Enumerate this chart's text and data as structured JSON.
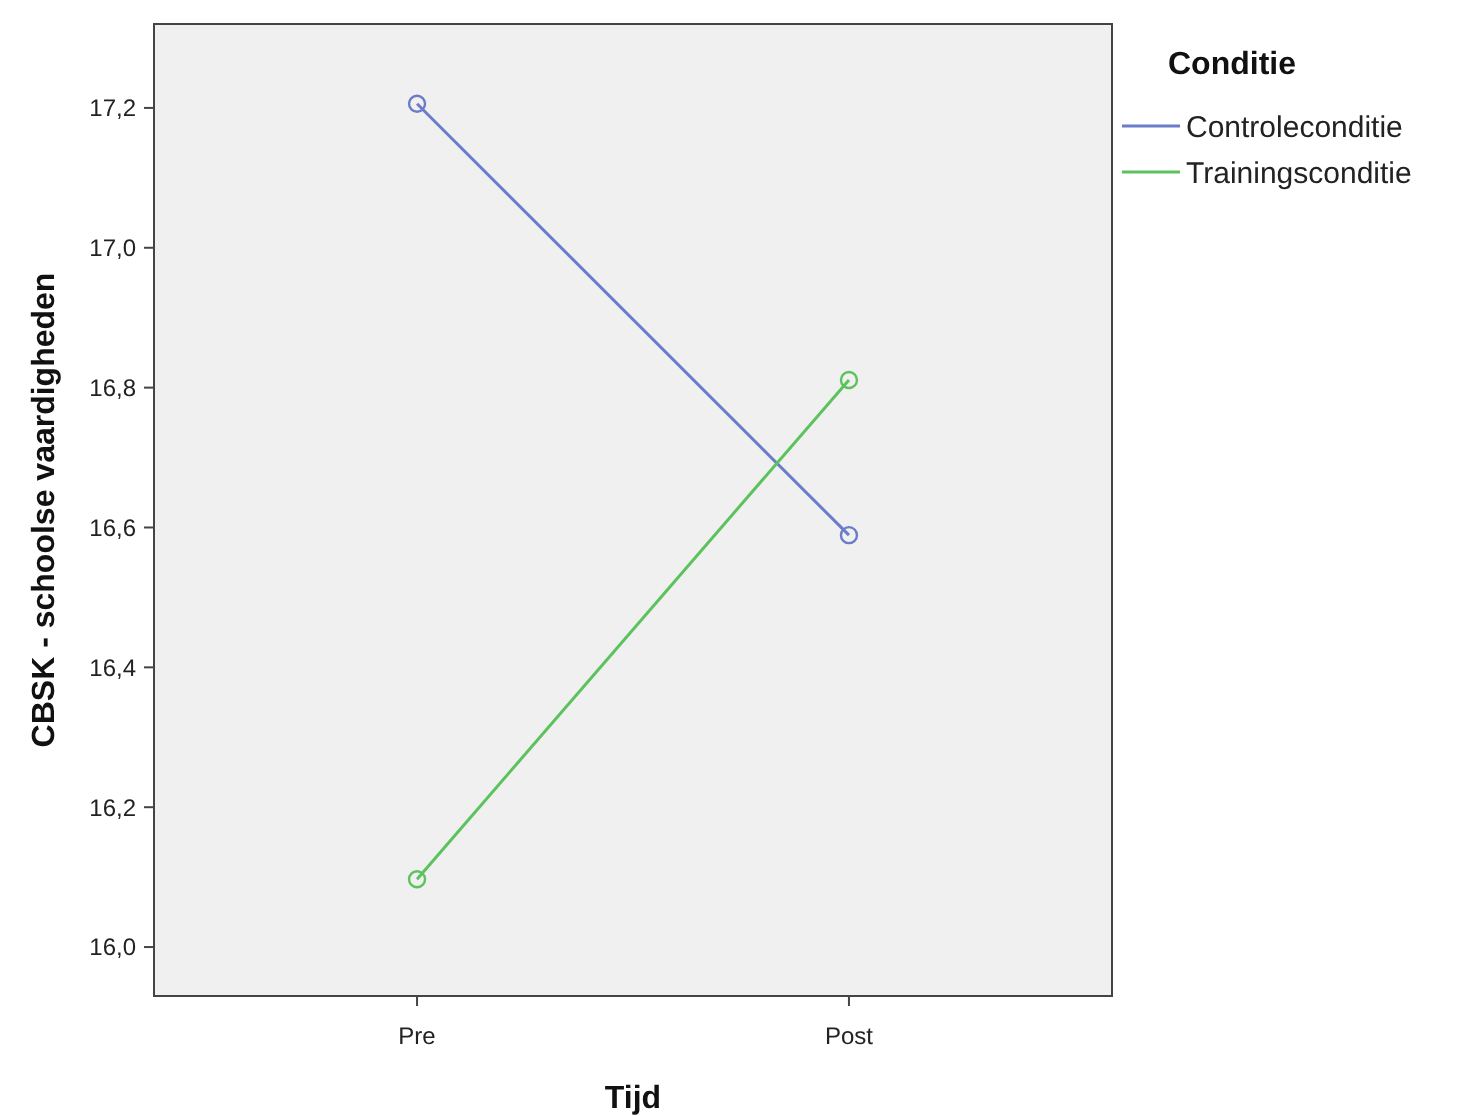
{
  "chart_data": {
    "type": "line",
    "xlabel": "Tijd",
    "ylabel": "CBSK - schoolse vaardigheden",
    "legend_title": "Conditie",
    "categories": [
      "Pre",
      "Post"
    ],
    "series": [
      {
        "name": "Controleconditie",
        "color": "#6b7cc9",
        "values": [
          17.206,
          16.589
        ]
      },
      {
        "name": "Trainingsconditie",
        "color": "#5cc25c",
        "values": [
          16.097,
          16.811
        ]
      }
    ],
    "ylim": [
      15.93,
      17.32
    ],
    "yticks": [
      {
        "value": 16.0,
        "label": "16,0"
      },
      {
        "value": 16.2,
        "label": "16,2"
      },
      {
        "value": 16.4,
        "label": "16,4"
      },
      {
        "value": 16.6,
        "label": "16,6"
      },
      {
        "value": 16.8,
        "label": "16,8"
      },
      {
        "value": 17.0,
        "label": "17,0"
      },
      {
        "value": 17.2,
        "label": "17,2"
      }
    ],
    "grid": false,
    "legend": "top right",
    "marker": "circle",
    "line_style": "solid"
  }
}
